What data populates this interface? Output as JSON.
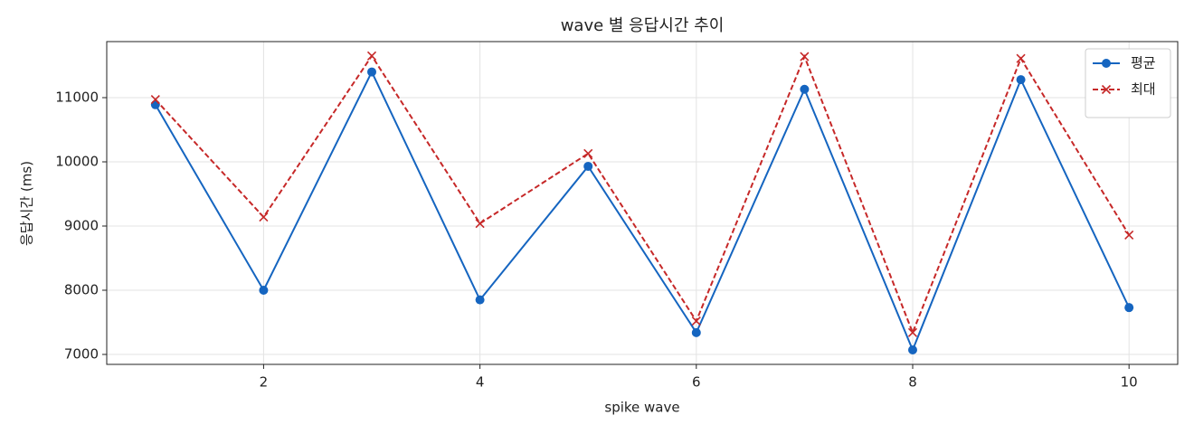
{
  "chart_data": {
    "type": "line",
    "title": "wave 별 응답시간 추이",
    "xlabel": "spike wave",
    "ylabel": "응답시간 (ms)",
    "x": [
      1,
      2,
      3,
      4,
      5,
      6,
      7,
      8,
      9,
      10
    ],
    "series": [
      {
        "name": "평균",
        "color": "#1565c0",
        "marker": "o",
        "linestyle": "solid",
        "values": [
          10890,
          8000,
          11400,
          7850,
          9930,
          7340,
          11130,
          7070,
          11280,
          7730
        ]
      },
      {
        "name": "최대",
        "color": "#c62828",
        "marker": "x",
        "linestyle": "dashed",
        "values": [
          10970,
          9140,
          11650,
          9040,
          10130,
          7520,
          11640,
          7340,
          11610,
          8860
        ]
      }
    ],
    "xlim": [
      0.55,
      10.45
    ],
    "xticks": [
      2,
      4,
      6,
      8,
      10
    ],
    "ylim": [
      6845,
      11873
    ],
    "yticks": [
      7000,
      8000,
      9000,
      10000,
      11000
    ],
    "grid": true,
    "legend": "upper right"
  }
}
